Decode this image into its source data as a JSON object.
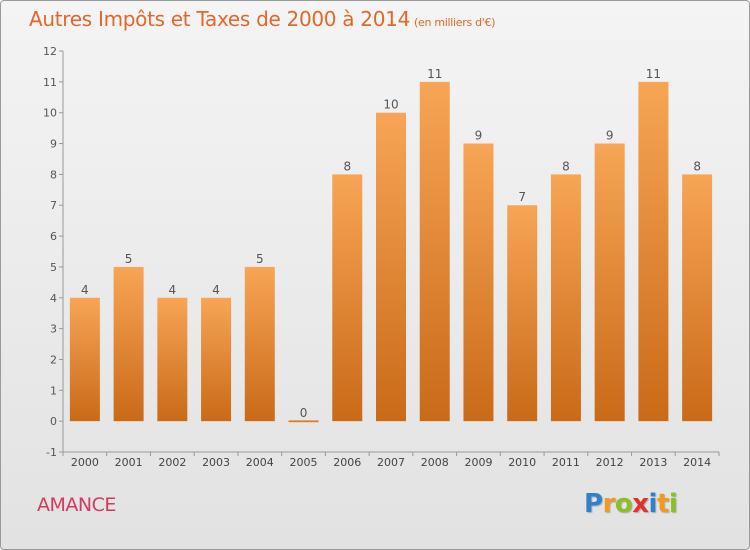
{
  "title": "Autres Impôts et Taxes de 2000 à 2014",
  "subtitle": "(en milliers d'€)",
  "commune": "AMANCE",
  "logo": {
    "letters": [
      "P",
      "r",
      "o",
      "x",
      "i",
      "t",
      "i"
    ],
    "colors": [
      "#2f82c9",
      "#f29a1d",
      "#8cbf26",
      "#e0322b",
      "#2f82c9",
      "#f29a1d",
      "#8cbf26"
    ]
  },
  "colors": {
    "bar_top": "#f7a556",
    "bar_bottom": "#c96a18",
    "title": "#e2672b",
    "commune": "#d53a5e"
  },
  "chart_data": {
    "type": "bar",
    "title": "Autres Impôts et Taxes de 2000 à 2014",
    "subtitle": "(en milliers d'€)",
    "categories": [
      "2000",
      "2001",
      "2002",
      "2003",
      "2004",
      "2005",
      "2006",
      "2007",
      "2008",
      "2009",
      "2010",
      "2011",
      "2012",
      "2013",
      "2014"
    ],
    "values": [
      4,
      5,
      4,
      4,
      5,
      0,
      8,
      10,
      11,
      9,
      7,
      8,
      9,
      11,
      8
    ],
    "ylim": [
      -1,
      12
    ],
    "yticks": [
      "-1",
      "0",
      "1",
      "2",
      "3",
      "4",
      "5",
      "6",
      "7",
      "8",
      "9",
      "10",
      "11",
      "12"
    ],
    "xlabel": "",
    "ylabel": "",
    "grid": false
  }
}
